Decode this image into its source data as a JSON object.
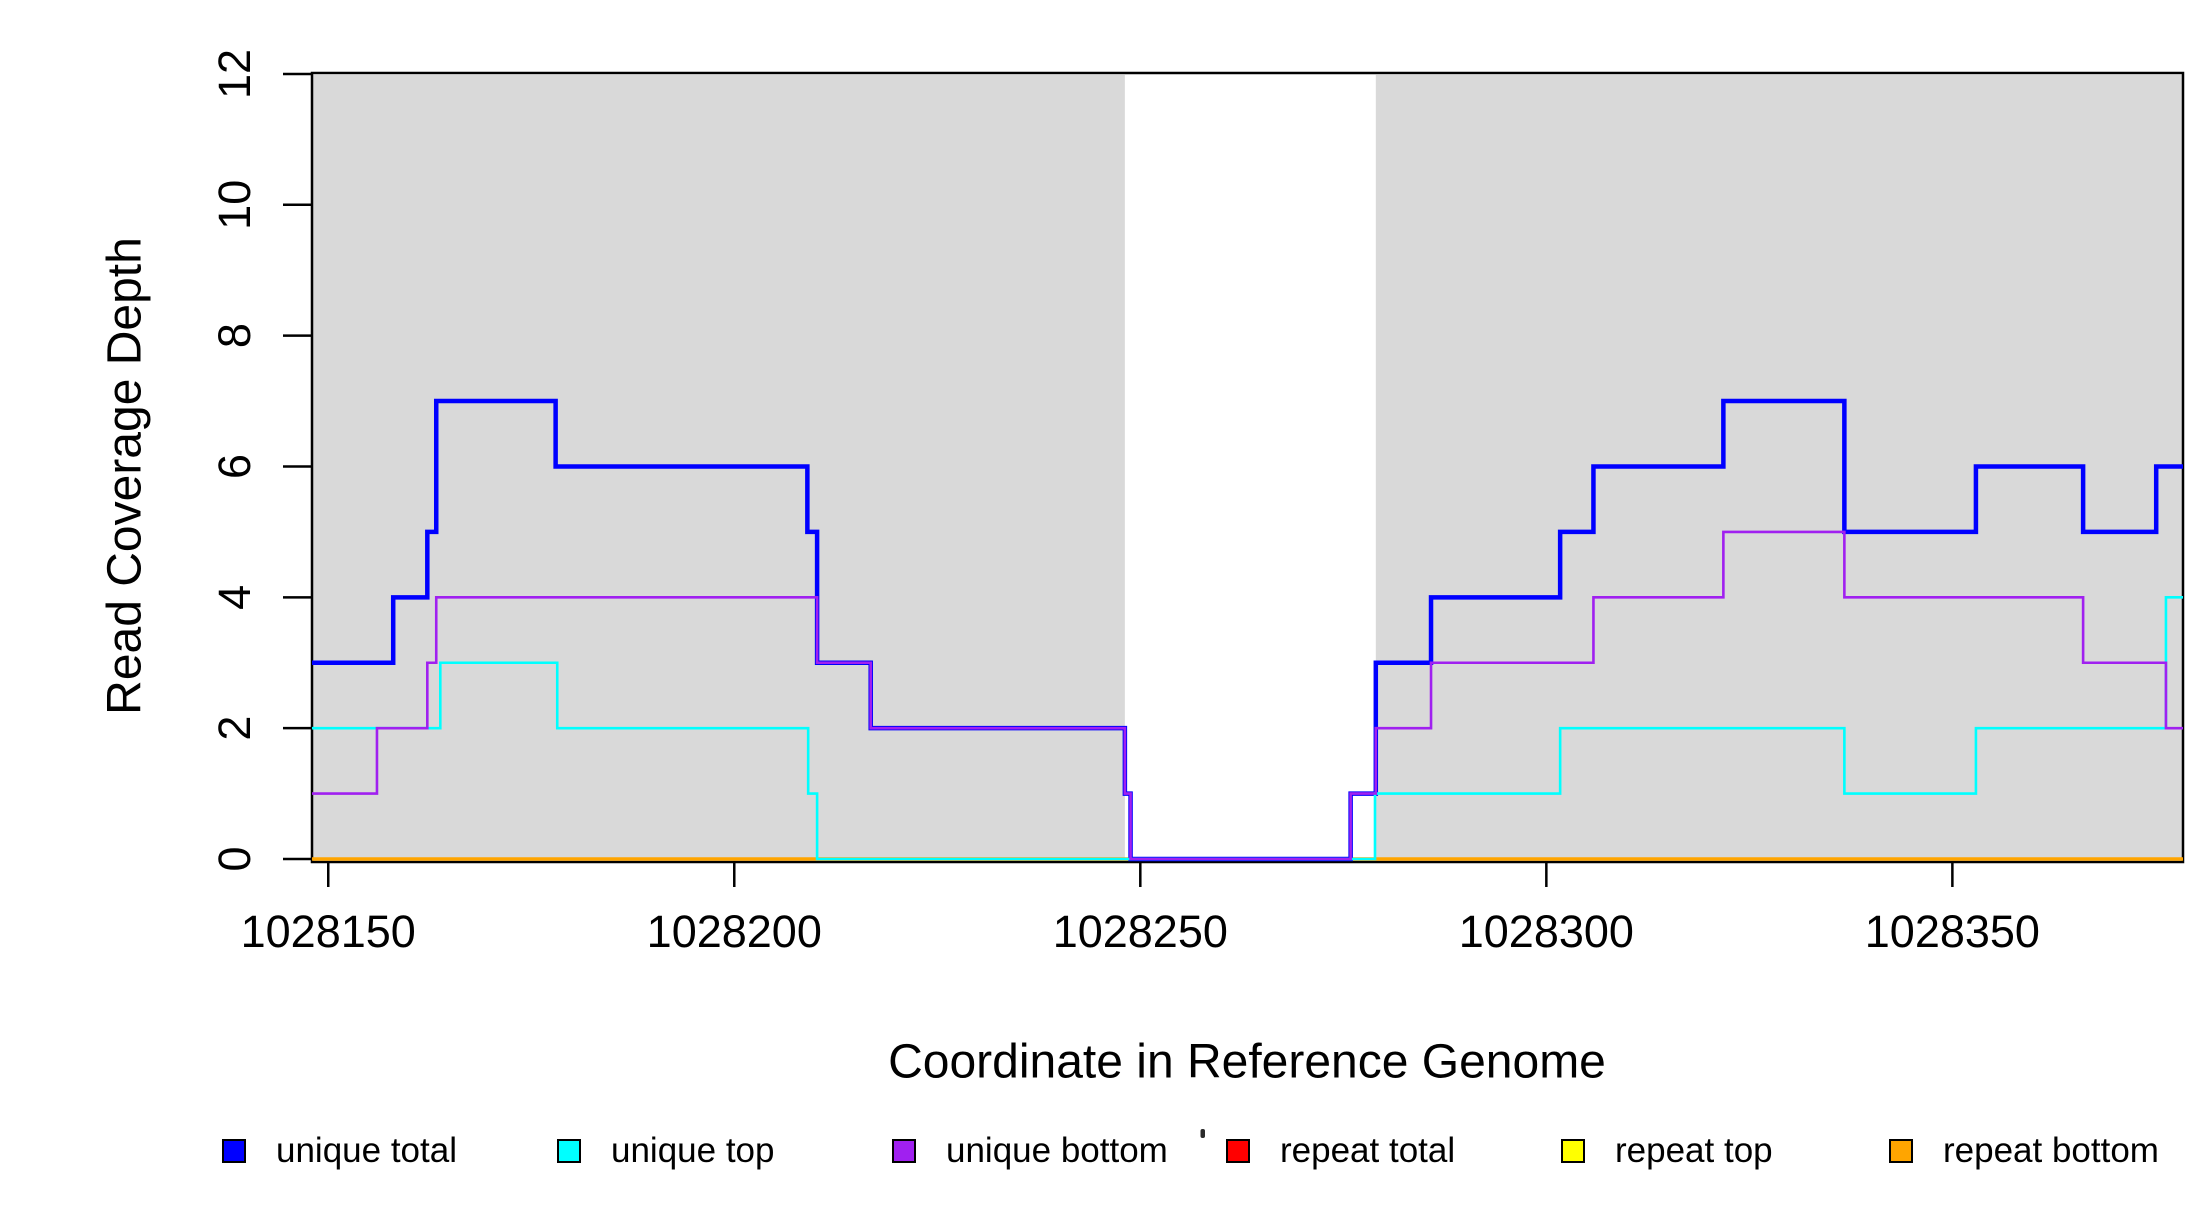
{
  "axes": {
    "xlabel": "Coordinate in Reference Genome",
    "ylabel": "Read Coverage Depth",
    "x_tick_values": [
      1028150,
      1028200,
      1028250,
      1028300,
      1028350
    ],
    "x_tick_labels": [
      "1028150",
      "1028200",
      "1028250",
      "1028300",
      "1028350"
    ],
    "y_tick_values": [
      0,
      2,
      4,
      6,
      8,
      10,
      12
    ],
    "y_tick_labels": [
      "0",
      "2",
      "4",
      "6",
      "8",
      "10",
      "12"
    ]
  },
  "chart_data": {
    "type": "line",
    "subtype": "step-coverage",
    "title": "",
    "xlabel": "Coordinate in Reference Genome",
    "ylabel": "Read Coverage Depth",
    "xlim": [
      1028148,
      1028378.4
    ],
    "ylim": [
      0,
      12
    ],
    "grid": false,
    "legend_position": "bottom",
    "background_color": "#ffffff",
    "shaded_region_color": "#d9d9d9",
    "shaded_regions": [
      {
        "x0": 1028148,
        "x1": 1028248.1
      },
      {
        "x0": 1028279,
        "x1": 1028378.4
      }
    ],
    "draw_order": [
      "repeat total",
      "repeat top",
      "repeat bottom",
      "unique total",
      "unique top",
      "unique bottom"
    ],
    "series": [
      {
        "name": "unique total",
        "color": "#0000ff",
        "line_width": 4.5,
        "start_value": 3,
        "steps": [
          [
            1028158.0,
            4
          ],
          [
            1028162.2,
            5
          ],
          [
            1028163.3,
            7
          ],
          [
            1028178.0,
            6
          ],
          [
            1028209.0,
            5
          ],
          [
            1028210.2,
            3
          ],
          [
            1028216.8,
            2
          ],
          [
            1028248.1,
            1
          ],
          [
            1028248.8,
            0
          ],
          [
            1028275.9,
            1
          ],
          [
            1028279.0,
            3
          ],
          [
            1028285.8,
            4
          ],
          [
            1028301.7,
            5
          ],
          [
            1028305.8,
            6
          ],
          [
            1028321.8,
            7
          ],
          [
            1028336.7,
            5
          ],
          [
            1028352.9,
            6
          ],
          [
            1028366.1,
            5
          ],
          [
            1028375.1,
            6
          ]
        ]
      },
      {
        "name": "unique top",
        "color": "#00ffff",
        "line_width": 2.6,
        "start_value": 2,
        "steps": [
          [
            1028163.8,
            3
          ],
          [
            1028178.2,
            2
          ],
          [
            1028209.1,
            1
          ],
          [
            1028210.2,
            0
          ],
          [
            1028278.9,
            1
          ],
          [
            1028301.7,
            2
          ],
          [
            1028336.7,
            1
          ],
          [
            1028352.9,
            2
          ],
          [
            1028376.3,
            4
          ]
        ]
      },
      {
        "name": "unique bottom",
        "color": "#a020f0",
        "line_width": 2.6,
        "start_value": 1,
        "steps": [
          [
            1028156.0,
            2
          ],
          [
            1028162.2,
            3
          ],
          [
            1028163.3,
            4
          ],
          [
            1028210.2,
            3
          ],
          [
            1028216.8,
            2
          ],
          [
            1028248.1,
            1
          ],
          [
            1028248.8,
            0
          ],
          [
            1028275.9,
            1
          ],
          [
            1028279.0,
            2
          ],
          [
            1028285.8,
            3
          ],
          [
            1028305.8,
            4
          ],
          [
            1028321.8,
            5
          ],
          [
            1028336.7,
            4
          ],
          [
            1028366.1,
            3
          ],
          [
            1028376.3,
            2
          ]
        ]
      },
      {
        "name": "repeat total",
        "color": "#ff0000",
        "line_width": 3,
        "start_value": 0,
        "steps": []
      },
      {
        "name": "repeat top",
        "color": "#ffff00",
        "line_width": 3,
        "start_value": 0,
        "steps": []
      },
      {
        "name": "repeat bottom",
        "color": "#ffa500",
        "line_width": 3.5,
        "start_value": 0,
        "steps": []
      }
    ]
  },
  "legend": {
    "items": [
      {
        "label": "unique total",
        "color": "#0000ff"
      },
      {
        "label": "unique top",
        "color": "#00ffff"
      },
      {
        "label": "unique bottom",
        "color": "#a020f0"
      },
      {
        "label": "repeat total",
        "color": "#ff0000"
      },
      {
        "label": "repeat top",
        "color": "#ffff00"
      },
      {
        "label": "repeat bottom",
        "color": "#ffa500"
      }
    ]
  }
}
